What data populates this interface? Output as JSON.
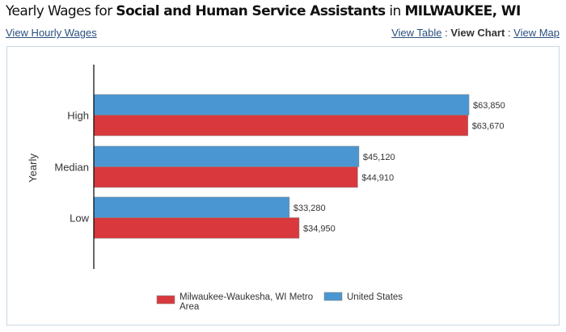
{
  "header": {
    "prefix": "Yearly Wages for ",
    "occupation": "Social and Human Service Assistants",
    "mid": " in ",
    "location": "MILWAUKEE, WI"
  },
  "links": {
    "hourly": "View Hourly Wages",
    "table": "View Table",
    "sep": " : ",
    "chart": "View Chart",
    "map": "View Map"
  },
  "chart_data": {
    "type": "bar",
    "orientation": "horizontal",
    "ylabel": "Yearly",
    "categories": [
      "High",
      "Median",
      "Low"
    ],
    "series": [
      {
        "name": "United States",
        "color": "#4a96d2",
        "values": [
          63850,
          45120,
          33280
        ],
        "labels": [
          "$63,850",
          "$45,120",
          "$33,280"
        ]
      },
      {
        "name": "Milwaukee-Waukesha, WI Metro Area",
        "color": "#d9383d",
        "values": [
          63670,
          44910,
          34950
        ],
        "labels": [
          "$63,670",
          "$44,910",
          "$34,950"
        ]
      }
    ],
    "legend": {
      "placement": "bottom",
      "items": [
        {
          "line1": "Milwaukee-Waukesha, WI Metro",
          "line2": "Area",
          "color": "#d9383d"
        },
        {
          "line1": "United States",
          "color": "#4a96d2"
        }
      ]
    }
  }
}
